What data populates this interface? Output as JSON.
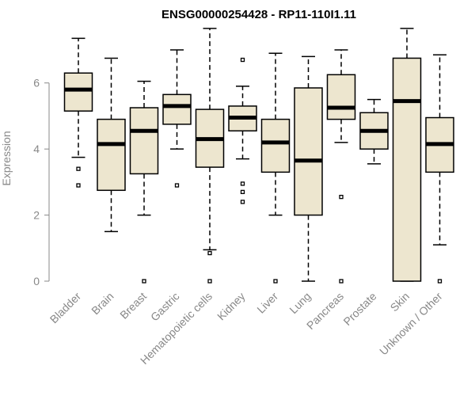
{
  "chart_data": {
    "type": "boxplot",
    "title": "ENSG00000254428 - RP11-110I1.11",
    "ylabel": "Expression",
    "ylim": [
      0,
      7.6
    ],
    "yticks": [
      0,
      2,
      4,
      6
    ],
    "grid": false,
    "box_color": "#ede6cf",
    "categories": [
      "Bladder",
      "Brain",
      "Breast",
      "Gastric",
      "Hematopoietic cells",
      "Kidney",
      "Liver",
      "Lung",
      "Pancreas",
      "Prostate",
      "Skin",
      "Unknown / Other"
    ],
    "boxes": [
      {
        "name": "Bladder",
        "min": 3.75,
        "q1": 5.15,
        "median": 5.8,
        "q3": 6.3,
        "max": 7.35,
        "outliers": [
          3.4,
          2.9
        ]
      },
      {
        "name": "Brain",
        "min": 1.5,
        "q1": 2.75,
        "median": 4.15,
        "q3": 4.9,
        "max": 6.75,
        "outliers": []
      },
      {
        "name": "Breast",
        "min": 2.0,
        "q1": 3.25,
        "median": 4.55,
        "q3": 5.25,
        "max": 6.05,
        "outliers": [
          0
        ]
      },
      {
        "name": "Gastric",
        "min": 4.0,
        "q1": 4.75,
        "median": 5.3,
        "q3": 5.65,
        "max": 7.0,
        "outliers": [
          2.9
        ]
      },
      {
        "name": "Hematopoietic cells",
        "min": 0.95,
        "q1": 3.45,
        "median": 4.3,
        "q3": 5.2,
        "max": 7.65,
        "outliers": [
          0.85,
          0
        ]
      },
      {
        "name": "Kidney",
        "min": 3.7,
        "q1": 4.55,
        "median": 4.95,
        "q3": 5.3,
        "max": 5.9,
        "outliers": [
          6.7,
          2.95,
          2.7,
          2.4
        ]
      },
      {
        "name": "Liver",
        "min": 2.0,
        "q1": 3.3,
        "median": 4.2,
        "q3": 4.9,
        "max": 6.9,
        "outliers": [
          0
        ]
      },
      {
        "name": "Lung",
        "min": 0,
        "q1": 2.0,
        "median": 3.65,
        "q3": 5.85,
        "max": 6.8,
        "outliers": []
      },
      {
        "name": "Pancreas",
        "min": 4.2,
        "q1": 4.9,
        "median": 5.25,
        "q3": 6.25,
        "max": 7.0,
        "outliers": [
          2.55,
          0
        ]
      },
      {
        "name": "Prostate",
        "min": 3.55,
        "q1": 4.0,
        "median": 4.55,
        "q3": 5.1,
        "max": 5.5,
        "outliers": []
      },
      {
        "name": "Skin",
        "min": 0,
        "q1": 0,
        "median": 5.45,
        "q3": 6.75,
        "max": 7.65,
        "outliers": []
      },
      {
        "name": "Unknown / Other",
        "min": 1.1,
        "q1": 3.3,
        "median": 4.15,
        "q3": 4.95,
        "max": 6.85,
        "outliers": [
          0
        ]
      }
    ]
  }
}
